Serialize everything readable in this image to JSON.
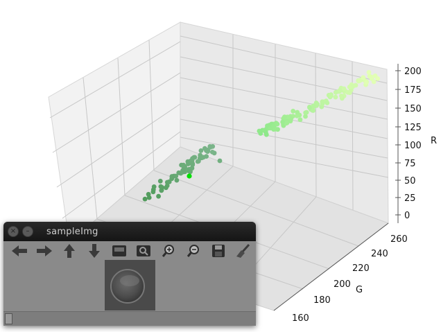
{
  "window": {
    "title": "sampleImg",
    "toolbar": [
      {
        "name": "pan-left-icon",
        "tooltip": ""
      },
      {
        "name": "pan-right-icon",
        "tooltip": ""
      },
      {
        "name": "pan-up-icon",
        "tooltip": ""
      },
      {
        "name": "pan-down-icon",
        "tooltip": ""
      },
      {
        "name": "zoom-fit-icon",
        "tooltip": ""
      },
      {
        "name": "zoom-pixel-icon",
        "tooltip": ""
      },
      {
        "name": "zoom-in-icon",
        "tooltip": ""
      },
      {
        "name": "zoom-out-icon",
        "tooltip": ""
      },
      {
        "name": "save-icon",
        "tooltip": ""
      },
      {
        "name": "properties-icon",
        "tooltip": ""
      }
    ]
  },
  "chart_data": {
    "type": "scatter",
    "projection": "3d",
    "axes": {
      "r": {
        "label": "R",
        "ticks": [
          "0",
          "25",
          "50",
          "75",
          "100",
          "125",
          "150",
          "175",
          "200"
        ]
      },
      "g": {
        "label": "G",
        "ticks": [
          "160",
          "180",
          "200",
          "220",
          "240",
          "260"
        ]
      }
    },
    "grid": true,
    "highlight_color": "#00e000",
    "clusters": [
      {
        "color_start": "#4f9a5a",
        "color_end": "#7bb58a",
        "g_range": [
          160,
          185
        ],
        "r_range": [
          10,
          75
        ]
      },
      {
        "color_start": "#8ee88a",
        "color_end": "#e4ffb5",
        "g_range": [
          200,
          255
        ],
        "r_range": [
          115,
          205
        ]
      }
    ]
  }
}
